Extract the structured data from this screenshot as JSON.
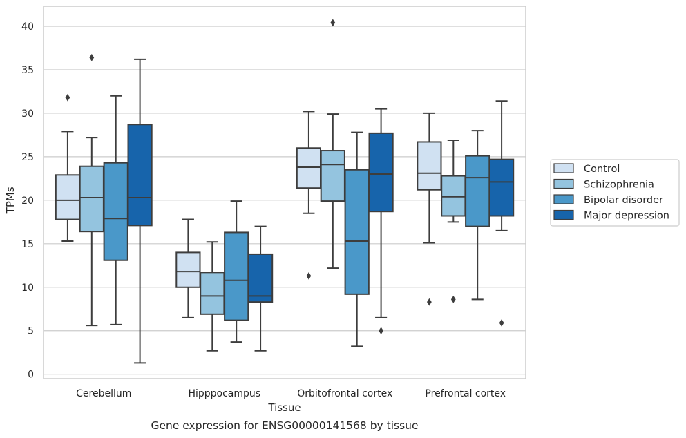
{
  "chart_data": {
    "type": "box",
    "title": "",
    "caption": "Gene expression for ENSG00000141568 by tissue",
    "xlabel": "Tissue",
    "ylabel": "TPMs",
    "ylim": [
      -0.5,
      42.3
    ],
    "yticks": [
      0,
      5,
      10,
      15,
      20,
      25,
      30,
      35,
      40
    ],
    "grid": "horizontal",
    "legend_position": "right",
    "categories": [
      "Cerebellum",
      "Hipppocampus",
      "Orbitofrontal cortex",
      "Prefrontal cortex"
    ],
    "series": [
      {
        "name": "Control",
        "color": "#d0e1f2",
        "boxes": [
          {
            "whisker_low": 15.3,
            "q1": 17.8,
            "median": 20.0,
            "q3": 22.9,
            "whisker_high": 27.9,
            "outliers": [
              31.8
            ]
          },
          {
            "whisker_low": 6.5,
            "q1": 10.0,
            "median": 11.8,
            "q3": 14.0,
            "whisker_high": 17.8,
            "outliers": []
          },
          {
            "whisker_low": 18.5,
            "q1": 21.4,
            "median": 23.8,
            "q3": 26.0,
            "whisker_high": 30.2,
            "outliers": [
              11.3
            ]
          },
          {
            "whisker_low": 15.1,
            "q1": 21.2,
            "median": 23.1,
            "q3": 26.7,
            "whisker_high": 30.0,
            "outliers": [
              8.3
            ]
          }
        ]
      },
      {
        "name": "Schizophrenia",
        "color": "#94c4df",
        "boxes": [
          {
            "whisker_low": 5.6,
            "q1": 16.4,
            "median": 20.3,
            "q3": 23.9,
            "whisker_high": 27.2,
            "outliers": [
              36.4
            ]
          },
          {
            "whisker_low": 2.7,
            "q1": 6.9,
            "median": 9.0,
            "q3": 11.7,
            "whisker_high": 15.2,
            "outliers": []
          },
          {
            "whisker_low": 12.2,
            "q1": 19.9,
            "median": 24.1,
            "q3": 25.7,
            "whisker_high": 29.9,
            "outliers": [
              40.4
            ]
          },
          {
            "whisker_low": 17.5,
            "q1": 18.2,
            "median": 20.4,
            "q3": 22.8,
            "whisker_high": 26.9,
            "outliers": [
              8.6
            ]
          }
        ]
      },
      {
        "name": "Bipolar disorder",
        "color": "#4a98c9",
        "boxes": [
          {
            "whisker_low": 5.7,
            "q1": 13.1,
            "median": 17.9,
            "q3": 24.3,
            "whisker_high": 32.0,
            "outliers": []
          },
          {
            "whisker_low": 3.7,
            "q1": 6.2,
            "median": 10.8,
            "q3": 16.3,
            "whisker_high": 19.9,
            "outliers": []
          },
          {
            "whisker_low": 3.2,
            "q1": 9.2,
            "median": 15.3,
            "q3": 23.5,
            "whisker_high": 27.8,
            "outliers": []
          },
          {
            "whisker_low": 8.6,
            "q1": 17.0,
            "median": 22.6,
            "q3": 25.1,
            "whisker_high": 28.0,
            "outliers": []
          }
        ]
      },
      {
        "name": "Major depression",
        "color": "#1764ab",
        "boxes": [
          {
            "whisker_low": 1.3,
            "q1": 17.1,
            "median": 20.3,
            "q3": 28.7,
            "whisker_high": 36.2,
            "outliers": []
          },
          {
            "whisker_low": 2.7,
            "q1": 8.3,
            "median": 9.0,
            "q3": 13.8,
            "whisker_high": 17.0,
            "outliers": []
          },
          {
            "whisker_low": 6.5,
            "q1": 18.7,
            "median": 23.0,
            "q3": 27.7,
            "whisker_high": 30.5,
            "outliers": [
              5.0
            ]
          },
          {
            "whisker_low": 16.5,
            "q1": 18.2,
            "median": 22.1,
            "q3": 24.7,
            "whisker_high": 31.4,
            "outliers": [
              5.9
            ]
          }
        ]
      }
    ]
  }
}
